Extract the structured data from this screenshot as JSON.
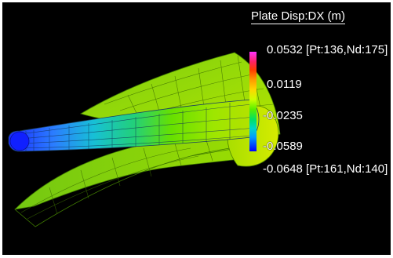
{
  "legend": {
    "title": "Plate Disp:DX (m)",
    "values": [
      "0.0532 [Pt:136,Nd:175]",
      "0.0119",
      "-0.0235",
      "-0.0589",
      "-0.0648 [Pt:161,Nd:140]"
    ],
    "colors": [
      "#ff33ff",
      "#ff2266",
      "#ff3a00",
      "#ff9900",
      "#ffd600",
      "#ccff00",
      "#55ee00",
      "#00e066",
      "#00d6c8",
      "#0099ff",
      "#0000ff"
    ]
  },
  "viewport": {
    "background": "#000000"
  }
}
